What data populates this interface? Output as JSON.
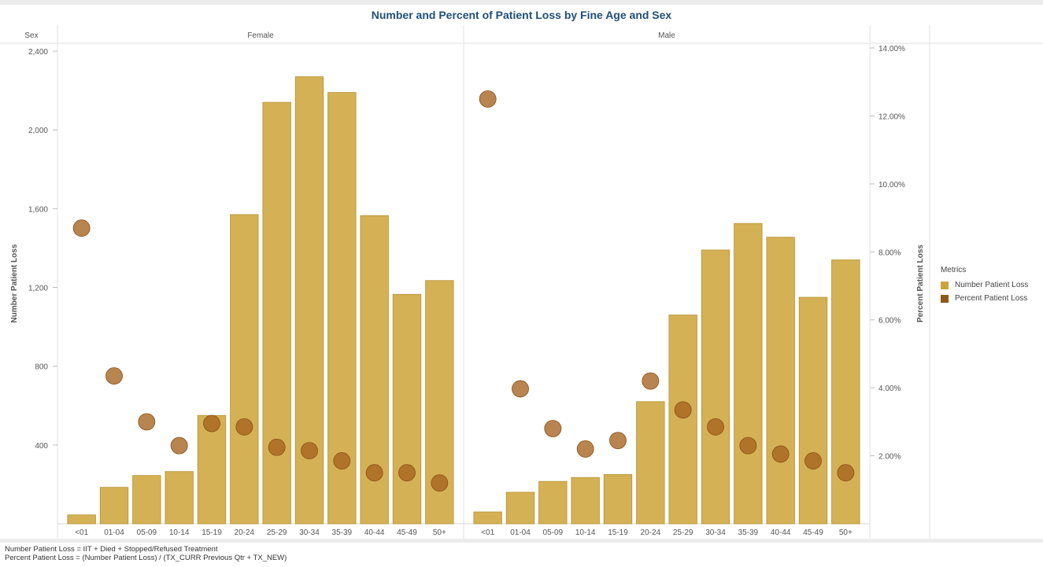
{
  "title": "Number and Percent of Patient Loss by Fine Age and Sex",
  "header": {
    "row_label": "Sex"
  },
  "legend": {
    "title": "Metrics",
    "items": [
      {
        "label": "Number Patient Loss",
        "color": "#c9a43a"
      },
      {
        "label": "Percent Patient Loss",
        "color": "#8b5a1a"
      }
    ]
  },
  "footnotes": [
    "Number Patient Loss = IIT + Died + Stopped/Refused Treatment",
    "Percent Patient Loss = (Number Patient Loss) / (TX_CURR Previous Qtr + TX_NEW)"
  ],
  "chart_data": {
    "type": "bar",
    "title": "Number and Percent of Patient Loss by Fine Age and Sex",
    "categories": [
      "<01",
      "01-04",
      "05-09",
      "10-14",
      "15-19",
      "20-24",
      "25-29",
      "30-34",
      "35-39",
      "40-44",
      "45-49",
      "50+"
    ],
    "ylabel": "Number Patient Loss",
    "y2label": "Percent Patient Loss",
    "ylim": [
      0,
      2440
    ],
    "y2lim": [
      0,
      14.14
    ],
    "yticks": [
      400,
      800,
      1200,
      1600,
      2000,
      2400
    ],
    "ytick_labels": [
      "400",
      "800",
      "1,200",
      "1,600",
      "2,000",
      "2,400"
    ],
    "y2ticks": [
      2,
      4,
      6,
      8,
      10,
      12,
      14
    ],
    "y2tick_labels": [
      "2.00%",
      "4.00%",
      "6.00%",
      "8.00%",
      "10.00%",
      "12.00%",
      "14.00%"
    ],
    "bar_color": "#d4b155",
    "bar_edge_color": "#b8912e",
    "dot_color": "#a4621f",
    "panels": [
      {
        "name": "Female",
        "number_patient_loss": [
          45,
          185,
          245,
          265,
          550,
          1570,
          2140,
          2270,
          2190,
          1565,
          1165,
          1235
        ],
        "percent_patient_loss": [
          8.7,
          4.35,
          3.0,
          2.3,
          2.95,
          2.85,
          2.25,
          2.15,
          1.85,
          1.5,
          1.5,
          1.2
        ]
      },
      {
        "name": "Male",
        "number_patient_loss": [
          60,
          160,
          215,
          235,
          250,
          620,
          1060,
          1390,
          1525,
          1455,
          1150,
          1340
        ],
        "percent_patient_loss": [
          12.5,
          3.97,
          2.8,
          2.2,
          2.45,
          4.2,
          3.35,
          2.85,
          2.3,
          2.05,
          1.85,
          1.5
        ]
      }
    ]
  }
}
